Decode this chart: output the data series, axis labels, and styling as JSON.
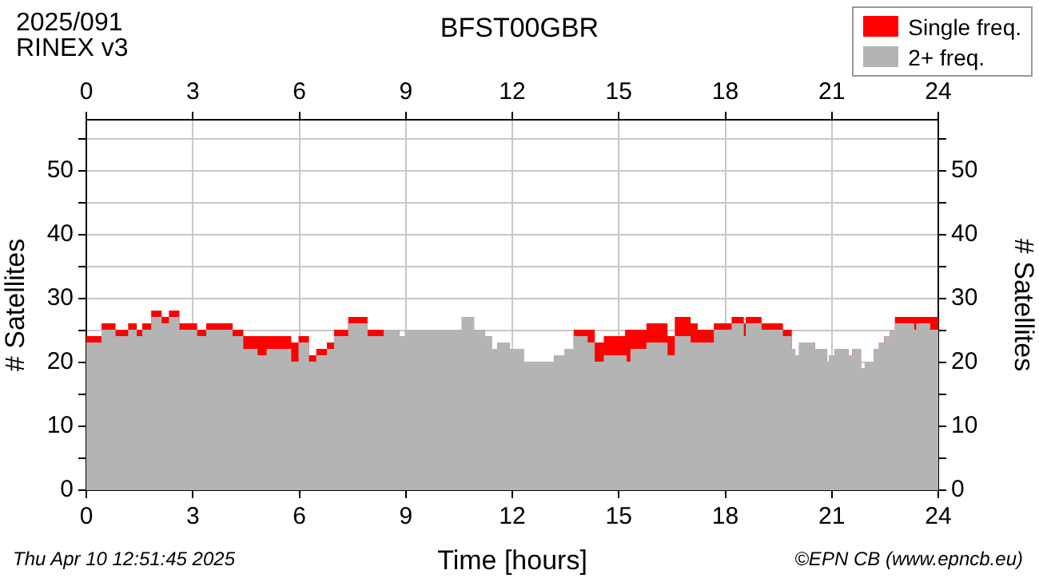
{
  "chart_data": {
    "type": "area",
    "title": "BFST00GBR",
    "xlabel": "Time [hours]",
    "ylabel": "# Satellites",
    "y2label": "# Satellites",
    "annotations": [
      "2025/091",
      "RINEX v3",
      "Thu Apr 10 12:51:45 2025",
      "©EPN CB (www.epncb.eu)"
    ],
    "x": [
      0,
      0.45,
      0.45,
      0.8,
      0.8,
      1.2,
      1.2,
      1.4,
      1.4,
      1.6,
      1.6,
      1.85,
      1.85,
      2.1,
      2.1,
      2.35,
      2.35,
      2.6,
      2.6,
      3.1,
      3.1,
      3.4,
      3.4,
      4.1,
      4.1,
      4.4,
      4.4,
      4.8,
      4.8,
      5.1,
      5.1,
      5.75,
      5.75,
      6.0,
      6.0,
      6.25,
      6.25,
      6.5,
      6.5,
      6.8,
      6.8,
      7.0,
      7.0,
      7.4,
      7.4,
      7.9,
      7.9,
      8.4,
      8.4,
      8.8,
      8.8,
      9.0,
      9.0,
      10.6,
      10.6,
      10.9,
      10.9,
      11.2,
      11.2,
      11.4,
      11.4,
      11.6,
      11.6,
      11.9,
      11.9,
      12.3,
      12.3,
      13.2,
      13.2,
      13.5,
      13.5,
      13.75,
      13.75,
      14.1,
      14.1,
      14.3,
      14.3,
      14.6,
      14.6,
      15.2,
      15.2,
      15.35,
      15.35,
      15.8,
      15.8,
      16.35,
      16.35,
      16.6,
      16.6,
      17.0,
      17.0,
      17.2,
      17.2,
      17.7,
      17.7,
      18.2,
      18.2,
      18.5,
      18.5,
      18.6,
      18.6,
      19.0,
      19.0,
      19.6,
      19.6,
      19.85,
      19.85,
      19.95,
      19.95,
      20.1,
      20.1,
      20.5,
      20.5,
      20.85,
      20.85,
      20.95,
      20.95,
      21.1,
      21.1,
      21.45,
      21.45,
      21.6,
      21.6,
      21.8,
      21.8,
      21.95,
      21.95,
      22.2,
      22.2,
      22.35,
      22.35,
      22.5,
      22.5,
      22.65,
      22.65,
      22.8,
      22.8,
      23.3,
      23.3,
      23.4,
      23.4,
      23.75,
      23.75,
      24
    ],
    "stacked": true,
    "series": [
      {
        "name": "2+ freq.",
        "color": "#b4b4b4",
        "values": [
          23,
          23,
          25,
          25,
          24,
          24,
          25,
          25,
          24,
          24,
          25,
          25,
          27,
          27,
          26,
          26,
          27,
          27,
          25,
          25,
          24,
          24,
          25,
          25,
          24,
          24,
          22,
          22,
          21,
          21,
          22,
          22,
          20,
          20,
          23,
          23,
          20,
          20,
          21,
          21,
          22,
          22,
          24,
          24,
          26,
          26,
          24,
          24,
          25,
          25,
          24,
          24,
          25,
          25,
          27,
          27,
          25,
          25,
          24,
          24,
          22,
          22,
          23,
          23,
          22,
          22,
          20,
          20,
          21,
          21,
          22,
          22,
          24,
          24,
          23,
          23,
          20,
          20,
          21,
          21,
          20,
          20,
          22,
          22,
          23,
          23,
          21,
          21,
          24,
          24,
          23,
          23,
          23,
          23,
          25,
          25,
          26,
          26,
          24,
          24,
          26,
          26,
          25,
          25,
          24,
          24,
          22,
          22,
          21,
          21,
          23,
          23,
          22,
          22,
          20,
          20,
          21,
          21,
          22,
          22,
          21,
          21,
          22,
          22,
          19,
          19,
          20,
          20,
          22,
          22,
          23,
          23,
          24,
          24,
          25,
          25,
          26,
          26,
          25,
          25,
          26,
          26,
          25,
          25
        ]
      },
      {
        "name": "Single freq.",
        "color": "#ff0000",
        "values": [
          1,
          1,
          1,
          1,
          1,
          1,
          1,
          1,
          1,
          1,
          1,
          1,
          1,
          1,
          1,
          1,
          1,
          1,
          1,
          1,
          1,
          1,
          1,
          1,
          1,
          1,
          2,
          2,
          3,
          3,
          2,
          2,
          3,
          3,
          1,
          1,
          1,
          1,
          1,
          1,
          1,
          1,
          1,
          1,
          1,
          1,
          1,
          1,
          0,
          0,
          0,
          0,
          0,
          0,
          0,
          0,
          0,
          0,
          0,
          0,
          0,
          0,
          0,
          0,
          0,
          0,
          0,
          0,
          0,
          0,
          0,
          0,
          1,
          1,
          2,
          2,
          3,
          3,
          3,
          3,
          5,
          5,
          3,
          3,
          3,
          3,
          3,
          3,
          3,
          3,
          3,
          3,
          2,
          2,
          1,
          1,
          1,
          1,
          2,
          2,
          1,
          1,
          1,
          1,
          1,
          1,
          0,
          0,
          0,
          0,
          0,
          0,
          0,
          0,
          0,
          0,
          0,
          0,
          0,
          0,
          0,
          0,
          0,
          0,
          0,
          0,
          0,
          0,
          0,
          0,
          0,
          0,
          0,
          0,
          0,
          0,
          1,
          1,
          2,
          2,
          1,
          1,
          2,
          2
        ]
      }
    ],
    "xlim": [
      0,
      24
    ],
    "xticks": [
      0,
      3,
      6,
      9,
      12,
      15,
      18,
      21,
      24
    ],
    "x2lim": [
      0,
      24
    ],
    "x2ticks": [
      0,
      3,
      6,
      9,
      12,
      15,
      18,
      21,
      24
    ],
    "ylim": [
      0,
      58
    ],
    "yticks": [
      0,
      {
        "value": 5,
        "label": null
      },
      10,
      {
        "value": 15,
        "label": null
      },
      20,
      {
        "value": 25,
        "label": null
      },
      30,
      {
        "value": 35,
        "label": null
      },
      40,
      {
        "value": 45,
        "label": null
      },
      50,
      {
        "value": 55,
        "label": null
      }
    ],
    "y2lim": [
      0,
      58
    ],
    "y2ticks": [
      0,
      {
        "value": 5,
        "label": null
      },
      10,
      {
        "value": 15,
        "label": null
      },
      20,
      {
        "value": 25,
        "label": null
      },
      30,
      {
        "value": 35,
        "label": null
      },
      40,
      {
        "value": 45,
        "label": null
      },
      50,
      {
        "value": 55,
        "label": null
      }
    ],
    "grid": true,
    "legend": "top right"
  }
}
